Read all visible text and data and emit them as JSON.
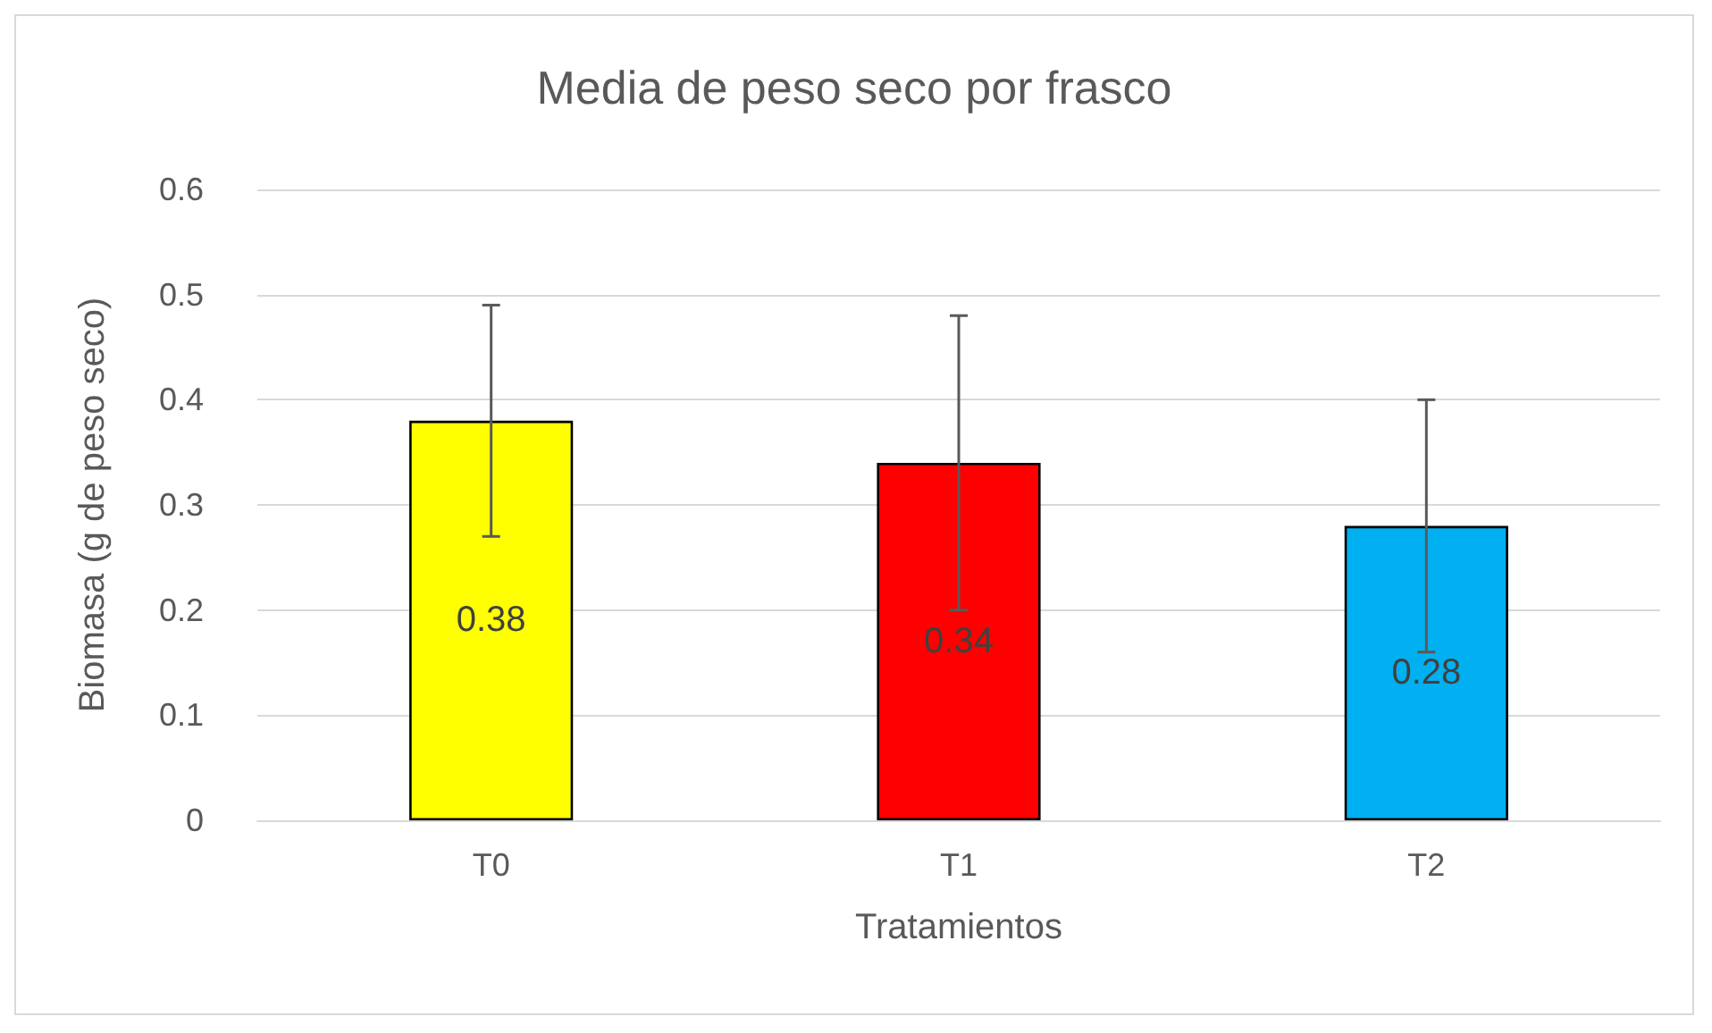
{
  "chart_data": {
    "type": "bar",
    "title": "Media de peso seco por frasco",
    "xlabel": "Tratamientos",
    "ylabel": "Biomasa (g de peso seco)",
    "categories": [
      "T0",
      "T1",
      "T2"
    ],
    "values": [
      0.38,
      0.34,
      0.28
    ],
    "colors": [
      "#ffff00",
      "#ff0000",
      "#00b0f0"
    ],
    "errors": [
      0.11,
      0.14,
      0.12
    ],
    "ylim": [
      0,
      0.6
    ],
    "yticks": [
      0,
      0.1,
      0.2,
      0.3,
      0.4,
      0.5,
      0.6
    ],
    "grid": "y",
    "data_labels": true
  }
}
